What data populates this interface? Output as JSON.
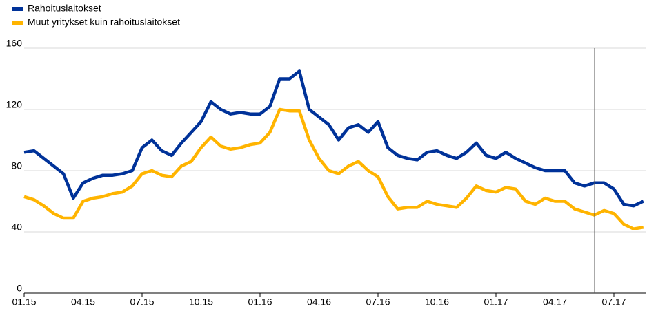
{
  "chart_data": {
    "type": "line",
    "categories": [
      "01.15",
      null,
      null,
      null,
      null,
      null,
      "04.15",
      null,
      null,
      null,
      null,
      null,
      "07.15",
      null,
      null,
      null,
      null,
      null,
      "10.15",
      null,
      null,
      null,
      null,
      null,
      "01.16",
      null,
      null,
      null,
      null,
      null,
      "04.16",
      null,
      null,
      null,
      null,
      null,
      "07.16",
      null,
      null,
      null,
      null,
      null,
      "10.16",
      null,
      null,
      null,
      null,
      null,
      "01.17",
      null,
      null,
      null,
      null,
      null,
      "04.17",
      null,
      null,
      null,
      null,
      null,
      "07.17",
      null,
      null,
      null
    ],
    "series": [
      {
        "name": "Rahoituslaitokset",
        "color": "#003299",
        "values": [
          92,
          93,
          88,
          83,
          78,
          62,
          72,
          75,
          77,
          77,
          78,
          80,
          95,
          100,
          93,
          90,
          98,
          105,
          112,
          125,
          120,
          117,
          118,
          117,
          117,
          122,
          140,
          140,
          145,
          120,
          115,
          110,
          100,
          108,
          110,
          105,
          112,
          95,
          90,
          88,
          87,
          92,
          93,
          90,
          88,
          92,
          98,
          90,
          88,
          92,
          88,
          85,
          82,
          80,
          80,
          80,
          72,
          70,
          72,
          72,
          68,
          58,
          57,
          60
        ]
      },
      {
        "name": "Muut yritykset kuin rahoituslaitokset",
        "color": "#ffb400",
        "values": [
          63,
          61,
          57,
          52,
          49,
          49,
          60,
          62,
          63,
          65,
          66,
          70,
          78,
          80,
          77,
          76,
          83,
          86,
          95,
          102,
          96,
          94,
          95,
          97,
          98,
          105,
          120,
          119,
          119,
          100,
          88,
          80,
          78,
          83,
          86,
          80,
          76,
          63,
          55,
          56,
          56,
          60,
          58,
          57,
          56,
          62,
          70,
          67,
          66,
          69,
          68,
          60,
          58,
          62,
          60,
          60,
          55,
          53,
          51,
          54,
          52,
          45,
          42,
          43
        ]
      }
    ],
    "ylim": [
      0,
      160
    ],
    "yticks": [
      0,
      40,
      80,
      120,
      160
    ],
    "grid": true
  }
}
